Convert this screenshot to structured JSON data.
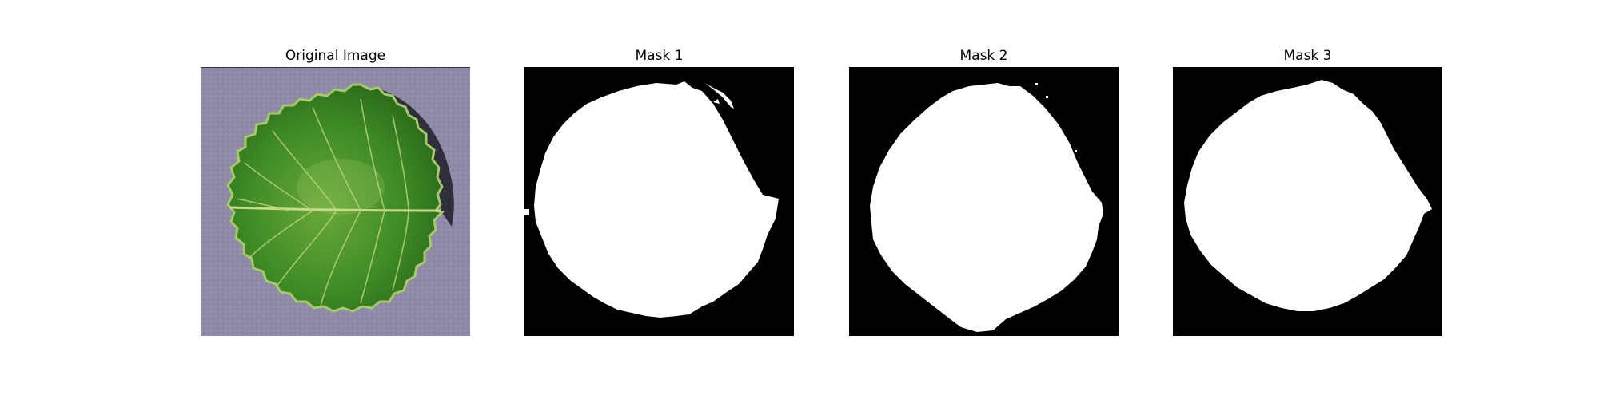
{
  "figure": {
    "panels": [
      {
        "title": "Original Image",
        "content": "leaf-photo"
      },
      {
        "title": "Mask 1",
        "content": "binary-mask"
      },
      {
        "title": "Mask 2",
        "content": "binary-mask"
      },
      {
        "title": "Mask 3",
        "content": "binary-mask"
      }
    ]
  },
  "colors": {
    "background_surface": "#8f8aa8",
    "leaf_dark": "#2f7d1f",
    "leaf_mid": "#4f9a2c",
    "leaf_light": "#7fbf45",
    "vein": "#c9d98a",
    "shadow": "#1f1f28",
    "mask_background": "#000000",
    "mask_foreground": "#ffffff"
  }
}
